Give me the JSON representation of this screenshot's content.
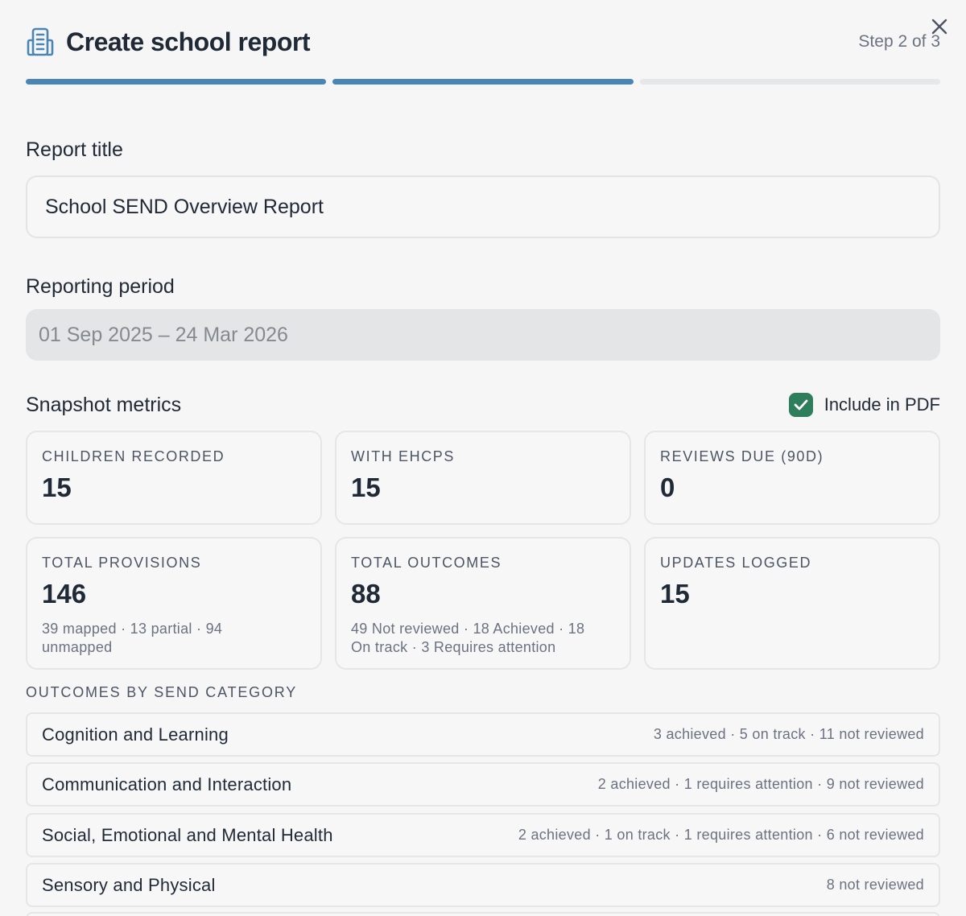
{
  "header": {
    "title": "Create school report",
    "step": "Step 2 of 3",
    "icon": "report-building-icon",
    "close_icon": "close-icon"
  },
  "progress": {
    "total_steps": 3,
    "current_step": 2
  },
  "report_title": {
    "label": "Report title",
    "value": "School SEND Overview Report"
  },
  "reporting_period": {
    "label": "Reporting period",
    "value": "01 Sep 2025 – 24 Mar 2026"
  },
  "snapshot": {
    "title": "Snapshot metrics",
    "include_pdf_label": "Include in PDF",
    "include_pdf_checked": true,
    "metrics": [
      {
        "label": "CHILDREN RECORDED",
        "value": "15",
        "sub": ""
      },
      {
        "label": "WITH EHCPS",
        "value": "15",
        "sub": ""
      },
      {
        "label": "REVIEWS DUE (90D)",
        "value": "0",
        "sub": ""
      },
      {
        "label": "TOTAL PROVISIONS",
        "value": "146",
        "sub": "39 mapped · 13 partial · 94 unmapped"
      },
      {
        "label": "TOTAL OUTCOMES",
        "value": "88",
        "sub": "49 Not reviewed · 18 Achieved · 18 On track · 3 Requires attention"
      },
      {
        "label": "UPDATES LOGGED",
        "value": "15",
        "sub": ""
      }
    ]
  },
  "categories": {
    "heading": "OUTCOMES BY SEND CATEGORY",
    "items": [
      {
        "name": "Cognition and Learning",
        "stats": "3 achieved · 5 on track · 11 not reviewed"
      },
      {
        "name": "Communication and Interaction",
        "stats": "2 achieved · 1 requires attention · 9 not reviewed"
      },
      {
        "name": "Social, Emotional and Mental Health",
        "stats": "2 achieved · 1 on track · 1 requires attention · 6 not reviewed"
      },
      {
        "name": "Sensory and Physical",
        "stats": "8 not reviewed"
      }
    ]
  },
  "colors": {
    "accent": "#4a86b4",
    "checkbox": "#2e7d5b",
    "background": "#f6f6f6"
  }
}
